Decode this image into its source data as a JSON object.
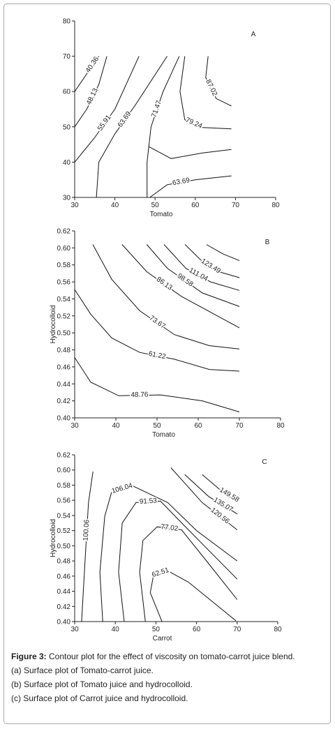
{
  "chart_data": [
    {
      "type": "contour",
      "panel": "A",
      "x_label": "Tomato",
      "xlim": [
        30,
        80
      ],
      "xticks": [
        30,
        40,
        50,
        60,
        70,
        80
      ],
      "ylim": [
        30,
        80
      ],
      "yticks": [
        30,
        40,
        50,
        60,
        70,
        80
      ],
      "series": [
        {
          "name": "40.36",
          "x": [
            30,
            33,
            36
          ],
          "values": [
            60,
            65,
            70
          ]
        },
        {
          "name": "48.13",
          "x": [
            30,
            33,
            36,
            38
          ],
          "values": [
            50,
            55,
            62,
            70
          ]
        },
        {
          "name": "55.91",
          "x": [
            30,
            35,
            40,
            46
          ],
          "values": [
            40,
            47,
            55,
            70
          ]
        },
        {
          "name": "63.69",
          "x": [
            35.4,
            36,
            40,
            45,
            53
          ],
          "values": [
            30,
            40,
            48,
            56,
            70
          ]
        },
        {
          "name": "71.47",
          "x": [
            48,
            48,
            49,
            52,
            56
          ],
          "values": [
            30,
            40,
            50,
            60,
            70
          ]
        },
        {
          "name": "79.24",
          "x": [
            57.4,
            56.2,
            57.4,
            61.8,
            69
          ],
          "values": [
            70,
            60,
            52,
            49.8,
            49.4
          ]
        },
        {
          "name": "87.02",
          "x": [
            63.2,
            62.6,
            65.2,
            69
          ],
          "values": [
            70,
            64,
            58,
            55.9
          ]
        },
        {
          "x": [
            48.4,
            54,
            61.8,
            69
          ],
          "values": [
            44.4,
            41,
            42.6,
            43.6
          ]
        },
        {
          "name": "63.69",
          "x": [
            48.7,
            53,
            60,
            69
          ],
          "values": [
            30,
            33.6,
            35,
            36.1
          ]
        }
      ]
    },
    {
      "type": "contour",
      "panel": "B",
      "x_label": "Tomato",
      "y_label": "Hydrocolloid",
      "xlim": [
        30,
        80
      ],
      "xticks": [
        30,
        40,
        50,
        60,
        70,
        80
      ],
      "ylim": [
        0.4,
        0.62
      ],
      "yticks": [
        {
          "value": 0.4,
          "label": "0.40"
        },
        {
          "value": 0.42,
          "label": "0.42"
        },
        {
          "value": 0.44,
          "label": "0.44"
        },
        {
          "value": 0.46,
          "label": "0.46"
        },
        {
          "value": 0.48,
          "label": "0.48"
        },
        {
          "value": 0.5,
          "label": "0.50"
        },
        {
          "value": 0.52,
          "label": "0.52"
        },
        {
          "value": 0.54,
          "label": "0.54"
        },
        {
          "value": 0.56,
          "label": "0.56"
        },
        {
          "value": 0.58,
          "label": "0.58"
        },
        {
          "value": 0.6,
          "label": "0.60"
        },
        {
          "value": 0.62,
          "label": "0.62"
        }
      ],
      "series": [
        {
          "name": "48.76",
          "x": [
            30,
            33.9,
            40.7,
            50.8,
            61,
            70
          ],
          "values": [
            0.471,
            0.442,
            0.426,
            0.427,
            0.42,
            0.407
          ]
        },
        {
          "name": "61.22",
          "x": [
            30,
            33.9,
            39,
            45.8,
            54.2,
            62.7,
            70
          ],
          "values": [
            0.551,
            0.522,
            0.494,
            0.477,
            0.469,
            0.457,
            0.455
          ]
        },
        {
          "name": "73.67",
          "x": [
            34.4,
            39,
            45.8,
            54.2,
            62.7,
            70
          ],
          "values": [
            0.604,
            0.563,
            0.526,
            0.498,
            0.485,
            0.481
          ]
        },
        {
          "name": "86.13",
          "x": [
            41.5,
            47.5,
            55.9,
            70
          ],
          "values": [
            0.604,
            0.572,
            0.543,
            0.506
          ]
        },
        {
          "name": "98.58",
          "x": [
            47.5,
            52.5,
            61,
            70
          ],
          "values": [
            0.604,
            0.576,
            0.547,
            0.531
          ]
        },
        {
          "name": "111.04",
          "x": [
            51.7,
            57,
            63,
            70
          ],
          "values": [
            0.604,
            0.576,
            0.56,
            0.55
          ]
        },
        {
          "name": "123.49",
          "x": [
            56.8,
            61,
            65,
            70
          ],
          "values": [
            0.604,
            0.584,
            0.572,
            0.565
          ]
        },
        {
          "x": [
            62,
            66,
            70
          ],
          "values": [
            0.604,
            0.593,
            0.585
          ]
        }
      ]
    },
    {
      "type": "contour",
      "panel": "C",
      "x_label": "Carrot",
      "y_label": "Hydrocolloid",
      "xlim": [
        30,
        80
      ],
      "xticks": [
        30,
        40,
        50,
        60,
        70,
        80
      ],
      "ylim": [
        0.4,
        0.62
      ],
      "yticks": [
        {
          "value": 0.4,
          "label": "0.40"
        },
        {
          "value": 0.42,
          "label": "0.42"
        },
        {
          "value": 0.44,
          "label": "0.44"
        },
        {
          "value": 0.46,
          "label": "0.46"
        },
        {
          "value": 0.48,
          "label": "0.48"
        },
        {
          "value": 0.5,
          "label": "0.50"
        },
        {
          "value": 0.52,
          "label": "0.52"
        },
        {
          "value": 0.54,
          "label": "0.54"
        },
        {
          "value": 0.56,
          "label": "0.56"
        },
        {
          "value": 0.58,
          "label": "0.58"
        },
        {
          "value": 0.6,
          "label": "0.60"
        },
        {
          "value": 0.62,
          "label": "0.62"
        }
      ],
      "series": [
        {
          "name": "100.06",
          "x": [
            31.7,
            32.6,
            33.4,
            34.5
          ],
          "values": [
            0.4,
            0.484,
            0.557,
            0.598
          ]
        },
        {
          "name": "106.04",
          "x": [
            36.9,
            36.2,
            37.4,
            39.1,
            44.3,
            52.9,
            60,
            70
          ],
          "values": [
            0.4,
            0.465,
            0.539,
            0.571,
            0.579,
            0.557,
            0.52,
            0.48
          ]
        },
        {
          "name": "91.53",
          "x": [
            42.2,
            40.8,
            41.7,
            45.1,
            51.1,
            58,
            70
          ],
          "values": [
            0.4,
            0.465,
            0.53,
            0.557,
            0.559,
            0.521,
            0.456
          ]
        },
        {
          "name": "77.02",
          "x": [
            47.4,
            46,
            46.8,
            50.3,
            56.3,
            63.2,
            70
          ],
          "values": [
            0.4,
            0.465,
            0.507,
            0.525,
            0.521,
            0.475,
            0.429
          ]
        },
        {
          "name": "62.51",
          "x": [
            51.5,
            48.6,
            49.4,
            52.9,
            58,
            69.7
          ],
          "values": [
            0.4,
            0.438,
            0.461,
            0.467,
            0.452,
            0.401
          ]
        },
        {
          "name": "120.56",
          "x": [
            53.7,
            61.4,
            70
          ],
          "values": [
            0.603,
            0.557,
            0.521
          ]
        },
        {
          "name": "135.07",
          "x": [
            57.1,
            63,
            70
          ],
          "values": [
            0.594,
            0.565,
            0.542
          ]
        },
        {
          "name": "149.58",
          "x": [
            61.4,
            66,
            70
          ],
          "values": [
            0.594,
            0.573,
            0.56
          ]
        }
      ]
    }
  ],
  "caption": {
    "label": "Figure 3:",
    "text": " Contour plot for the effect of viscosity on tomato-carrot juice blend.",
    "lines": [
      "(a) Surface plot of Tomato-carrot juice.",
      "(b) Surface plot of Tomato juice and hydrocolloid.",
      "(c) Surface plot of Carrot juice and hydrocolloid."
    ]
  }
}
